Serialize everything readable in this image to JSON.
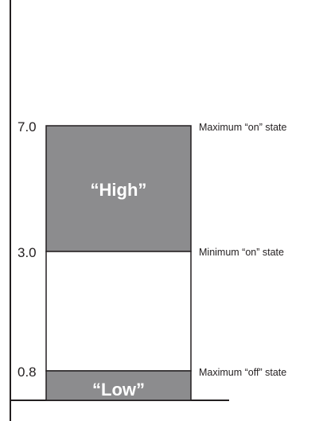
{
  "levels": [
    {
      "value": "7.0",
      "description": "Maximum “on” state"
    },
    {
      "value": "3.0",
      "description": "Minimum “on” state"
    },
    {
      "value": "0.8",
      "description": "Maximum “off” state"
    }
  ],
  "regions": {
    "high": {
      "label": "“High”",
      "color": "#8c8c8e"
    },
    "low": {
      "label": "“Low”",
      "color": "#8c8c8e"
    }
  },
  "line_color": "#231f20"
}
